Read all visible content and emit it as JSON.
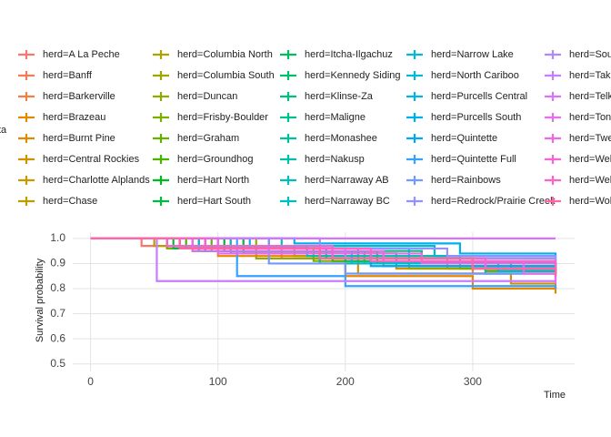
{
  "chart_data": {
    "type": "step",
    "legend_title": "ta",
    "x_label": "Time",
    "y_label": "Survival probability",
    "xlim": [
      -14,
      380
    ],
    "ylim": [
      0.47,
      1.025
    ],
    "xticks": [
      0,
      100,
      200,
      300
    ],
    "yticks": [
      0.5,
      0.6,
      0.7,
      0.8,
      0.9,
      {
        "value": 1,
        "label": "1.0"
      }
    ],
    "grid": true,
    "series": [
      {
        "name": "herd=A La Peche",
        "color": "#F8766D",
        "x": [
          0,
          40,
          150,
          280,
          365
        ],
        "values": [
          1,
          0.97,
          0.92,
          0.88,
          0.86
        ]
      },
      {
        "name": "herd=Banff",
        "color": "#F37B59",
        "x": [
          0,
          80,
          220,
          365
        ],
        "values": [
          1,
          0.95,
          0.9,
          0.9
        ]
      },
      {
        "name": "herd=Barkerville",
        "color": "#ED8141",
        "x": [
          0,
          60,
          180,
          300,
          365
        ],
        "values": [
          1,
          0.96,
          0.9,
          0.86,
          0.84
        ]
      },
      {
        "name": "herd=Brazeau",
        "color": "#E58700",
        "x": [
          0,
          100,
          200,
          300,
          365
        ],
        "values": [
          1,
          0.93,
          0.85,
          0.8,
          0.78
        ]
      },
      {
        "name": "herd=Burnt Pine",
        "color": "#DC8D00",
        "x": [
          0,
          120,
          240,
          365
        ],
        "values": [
          1,
          0.94,
          0.88,
          0.87
        ]
      },
      {
        "name": "herd=Central Rockies",
        "color": "#D29200",
        "x": [
          0,
          90,
          210,
          330,
          365
        ],
        "values": [
          1,
          0.95,
          0.86,
          0.82,
          0.8
        ]
      },
      {
        "name": "herd=Charlotte Alplands",
        "color": "#C79800",
        "x": [
          0,
          70,
          190,
          365
        ],
        "values": [
          1,
          0.96,
          0.91,
          0.89
        ]
      },
      {
        "name": "herd=Chase",
        "color": "#BB9D00",
        "x": [
          0,
          50,
          160,
          290,
          365
        ],
        "values": [
          1,
          0.97,
          0.93,
          0.9,
          0.88
        ]
      },
      {
        "name": "herd=Columbia North",
        "color": "#AEA200",
        "x": [
          0,
          110,
          230,
          365
        ],
        "values": [
          1,
          0.94,
          0.89,
          0.86
        ]
      },
      {
        "name": "herd=Columbia South",
        "color": "#A0A600",
        "x": [
          0,
          130,
          250,
          365
        ],
        "values": [
          1,
          0.92,
          0.88,
          0.85
        ]
      },
      {
        "name": "herd=Duncan",
        "color": "#8FAA00",
        "x": [
          0,
          85,
          200,
          320,
          365
        ],
        "values": [
          1,
          0.95,
          0.9,
          0.87,
          0.85
        ]
      },
      {
        "name": "herd=Frisby-Boulder",
        "color": "#7CAE00",
        "x": [
          0,
          60,
          175,
          290,
          365
        ],
        "values": [
          1,
          0.96,
          0.91,
          0.88,
          0.86
        ]
      },
      {
        "name": "herd=Graham",
        "color": "#64B200",
        "x": [
          0,
          95,
          215,
          365
        ],
        "values": [
          1,
          0.95,
          0.9,
          0.88
        ]
      },
      {
        "name": "herd=Groundhog",
        "color": "#45B500",
        "x": [
          0,
          75,
          190,
          310,
          365
        ],
        "values": [
          1,
          0.96,
          0.91,
          0.87,
          0.85
        ]
      },
      {
        "name": "herd=Hart North",
        "color": "#00B81F",
        "x": [
          0,
          105,
          225,
          365
        ],
        "values": [
          1,
          0.95,
          0.9,
          0.89
        ]
      },
      {
        "name": "herd=Hart South",
        "color": "#00BA42",
        "x": [
          0,
          65,
          185,
          300,
          365
        ],
        "values": [
          1,
          0.96,
          0.92,
          0.9,
          0.88
        ]
      },
      {
        "name": "herd=Itcha-Ilgachuz",
        "color": "#00BC59",
        "x": [
          0,
          120,
          240,
          365
        ],
        "values": [
          1,
          0.94,
          0.9,
          0.87
        ]
      },
      {
        "name": "herd=Kennedy Siding",
        "color": "#00BE6C",
        "x": [
          0,
          80,
          200,
          330,
          365
        ],
        "values": [
          1,
          0.95,
          0.91,
          0.88,
          0.86
        ]
      },
      {
        "name": "herd=Klinse-Za",
        "color": "#00BF7D",
        "x": [
          0,
          140,
          260,
          365
        ],
        "values": [
          1,
          0.95,
          0.92,
          0.91
        ]
      },
      {
        "name": "herd=Maligne",
        "color": "#00C08D",
        "x": [
          0,
          90,
          210,
          365
        ],
        "values": [
          1,
          0.96,
          0.92,
          0.9
        ]
      },
      {
        "name": "herd=Monashee",
        "color": "#00C09C",
        "x": [
          0,
          70,
          180,
          310,
          365
        ],
        "values": [
          1,
          0.96,
          0.9,
          0.86,
          0.84
        ]
      },
      {
        "name": "herd=Nakusp",
        "color": "#00C0AB",
        "x": [
          0,
          100,
          230,
          365
        ],
        "values": [
          1,
          0.95,
          0.9,
          0.88
        ]
      },
      {
        "name": "herd=Narraway AB",
        "color": "#00BFB8",
        "x": [
          0,
          60,
          170,
          290,
          365
        ],
        "values": [
          1,
          0.97,
          0.93,
          0.9,
          0.89
        ]
      },
      {
        "name": "herd=Narraway BC",
        "color": "#00BDC4",
        "x": [
          0,
          110,
          240,
          365
        ],
        "values": [
          1,
          0.94,
          0.89,
          0.87
        ]
      },
      {
        "name": "herd=Narrow Lake",
        "color": "#00BBCF",
        "x": [
          0,
          150,
          270,
          365
        ],
        "values": [
          1,
          0.97,
          0.93,
          0.91
        ]
      },
      {
        "name": "herd=North Cariboo",
        "color": "#00B8DA",
        "x": [
          0,
          85,
          205,
          320,
          365
        ],
        "values": [
          1,
          0.95,
          0.9,
          0.87,
          0.86
        ]
      },
      {
        "name": "herd=Purcells Central",
        "color": "#00B4E4",
        "x": [
          0,
          125,
          250,
          365
        ],
        "values": [
          1,
          0.96,
          0.91,
          0.9
        ]
      },
      {
        "name": "herd=Purcells South",
        "color": "#00AFED",
        "x": [
          0,
          160,
          290,
          365
        ],
        "values": [
          1,
          0.98,
          0.94,
          0.93
        ]
      },
      {
        "name": "herd=Quintette",
        "color": "#00A9F4",
        "x": [
          0,
          90,
          220,
          365
        ],
        "values": [
          1,
          0.95,
          0.89,
          0.87
        ]
      },
      {
        "name": "herd=Quintette Full",
        "color": "#35A2FF",
        "x": [
          0,
          115,
          200,
          300,
          365
        ],
        "values": [
          1,
          0.85,
          0.81,
          0.81,
          0.8
        ]
      },
      {
        "name": "herd=Rainbows",
        "color": "#7299FF",
        "x": [
          0,
          140,
          200,
          365
        ],
        "values": [
          1,
          0.9,
          0.86,
          0.85
        ]
      },
      {
        "name": "herd=Redrock/Prairie Creek",
        "color": "#9590FF",
        "x": [
          0,
          180,
          280,
          365
        ],
        "values": [
          1,
          0.96,
          0.93,
          0.92
        ]
      },
      {
        "name": "herd=Sou",
        "color": "#B186FF",
        "x": [
          0,
          70,
          200,
          365
        ],
        "values": [
          1,
          0.96,
          0.92,
          0.9
        ]
      },
      {
        "name": "herd=Takl",
        "color": "#C77CFF",
        "x": [
          0,
          52,
          320,
          365
        ],
        "values": [
          1,
          0.83,
          0.83,
          0.83
        ]
      },
      {
        "name": "herd=Telk",
        "color": "#D973FC",
        "x": [
          0,
          330,
          365
        ],
        "values": [
          1,
          1,
          1
        ]
      },
      {
        "name": "herd=Ton",
        "color": "#E76BF3",
        "x": [
          0,
          80,
          230,
          340,
          365
        ],
        "values": [
          1,
          0.95,
          0.91,
          0.86,
          0.82
        ]
      },
      {
        "name": "herd=Twe",
        "color": "#F265E8",
        "x": [
          0,
          100,
          260,
          365
        ],
        "values": [
          1,
          0.94,
          0.9,
          0.88
        ]
      },
      {
        "name": "herd=Wel",
        "color": "#FB61D7",
        "x": [
          0,
          60,
          190,
          310,
          365
        ],
        "values": [
          1,
          0.97,
          0.92,
          0.88,
          0.86
        ]
      },
      {
        "name": "herd=Wel",
        "color": "#FF62C5",
        "x": [
          0,
          90,
          220,
          365
        ],
        "values": [
          1,
          0.96,
          0.91,
          0.89
        ]
      },
      {
        "name": "herd=Wol",
        "color": "#FF67A4",
        "x": [
          0,
          70,
          180,
          300,
          365
        ],
        "values": [
          1,
          0.96,
          0.92,
          0.88,
          0.85
        ]
      }
    ]
  }
}
